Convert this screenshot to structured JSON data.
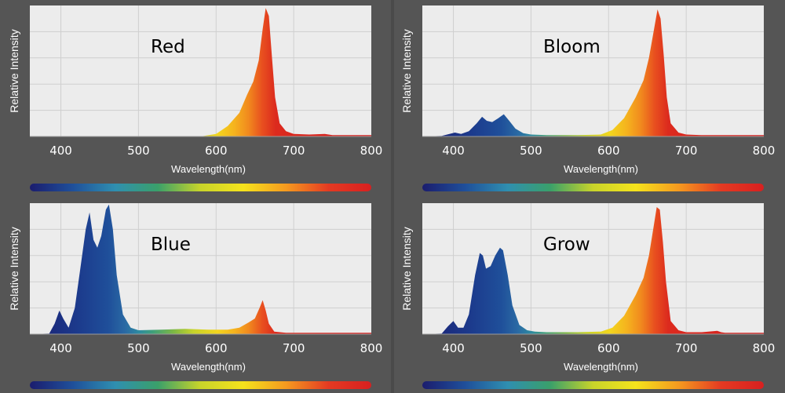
{
  "colors": {
    "background": "#555555",
    "plot_background": "#ececec",
    "grid": "#cfcfcf",
    "axis_text": "#ffffff",
    "spectrum_bar": [
      "#1b1d6e",
      "#1f4f9a",
      "#2f8fb0",
      "#3aa06a",
      "#c8d42a",
      "#f5e31c",
      "#f59a1f",
      "#e43a22",
      "#d82020"
    ]
  },
  "chart_data": [
    {
      "type": "area",
      "title": "Red",
      "xlabel": "Wavelength(nm)",
      "ylabel": "Relative Intensity",
      "xlim": [
        360,
        800
      ],
      "ylim": [
        0,
        1
      ],
      "xticks": [
        400,
        500,
        600,
        700,
        800
      ],
      "grid": true,
      "x": [
        360,
        580,
        600,
        615,
        630,
        640,
        648,
        655,
        660,
        664,
        668,
        672,
        676,
        682,
        690,
        700,
        720,
        740,
        745,
        750,
        800
      ],
      "y": [
        0,
        0,
        0.02,
        0.08,
        0.18,
        0.32,
        0.42,
        0.58,
        0.82,
        0.98,
        0.92,
        0.6,
        0.3,
        0.1,
        0.04,
        0.02,
        0.015,
        0.02,
        0.015,
        0.01,
        0.01
      ]
    },
    {
      "type": "area",
      "title": "Bloom",
      "xlabel": "Wavelength(nm)",
      "ylabel": "Relative Intensity",
      "xlim": [
        360,
        800
      ],
      "ylim": [
        0,
        1
      ],
      "xticks": [
        400,
        500,
        600,
        700,
        800
      ],
      "grid": true,
      "x": [
        360,
        385,
        395,
        402,
        410,
        420,
        430,
        437,
        443,
        450,
        458,
        465,
        472,
        480,
        490,
        500,
        520,
        560,
        590,
        605,
        620,
        635,
        645,
        652,
        658,
        663,
        667,
        671,
        675,
        680,
        690,
        700,
        720,
        800
      ],
      "y": [
        0,
        0.005,
        0.02,
        0.03,
        0.02,
        0.04,
        0.1,
        0.15,
        0.12,
        0.11,
        0.14,
        0.17,
        0.12,
        0.06,
        0.025,
        0.015,
        0.01,
        0.01,
        0.015,
        0.05,
        0.14,
        0.3,
        0.43,
        0.6,
        0.8,
        0.97,
        0.9,
        0.62,
        0.3,
        0.1,
        0.03,
        0.015,
        0.01,
        0.01
      ]
    },
    {
      "type": "area",
      "title": "Blue",
      "xlabel": "Wavelength(nm)",
      "ylabel": "Relative Intensity",
      "xlim": [
        360,
        800
      ],
      "ylim": [
        0,
        1
      ],
      "xticks": [
        400,
        500,
        600,
        700,
        800
      ],
      "grid": true,
      "x": [
        360,
        385,
        392,
        398,
        403,
        410,
        418,
        425,
        432,
        437,
        442,
        447,
        452,
        458,
        462,
        467,
        472,
        480,
        490,
        500,
        530,
        560,
        590,
        615,
        630,
        642,
        650,
        656,
        660,
        664,
        668,
        675,
        690,
        800
      ],
      "y": [
        0,
        0.005,
        0.08,
        0.18,
        0.12,
        0.05,
        0.2,
        0.5,
        0.8,
        0.93,
        0.72,
        0.66,
        0.75,
        0.95,
        0.99,
        0.8,
        0.45,
        0.15,
        0.05,
        0.03,
        0.035,
        0.04,
        0.035,
        0.035,
        0.05,
        0.09,
        0.12,
        0.2,
        0.26,
        0.18,
        0.08,
        0.02,
        0.01,
        0.01
      ]
    },
    {
      "type": "area",
      "title": "Grow",
      "xlabel": "Wavelength(nm)",
      "ylabel": "Relative Intensity",
      "xlim": [
        360,
        800
      ],
      "ylim": [
        0,
        1
      ],
      "xticks": [
        400,
        500,
        600,
        700,
        800
      ],
      "grid": true,
      "x": [
        360,
        385,
        393,
        400,
        406,
        413,
        420,
        428,
        434,
        438,
        442,
        448,
        454,
        460,
        464,
        470,
        476,
        485,
        495,
        505,
        520,
        560,
        590,
        605,
        620,
        635,
        645,
        652,
        658,
        662,
        666,
        670,
        674,
        680,
        690,
        700,
        720,
        740,
        745,
        750,
        800
      ],
      "y": [
        0,
        0.005,
        0.06,
        0.1,
        0.05,
        0.05,
        0.15,
        0.45,
        0.62,
        0.6,
        0.5,
        0.52,
        0.6,
        0.66,
        0.64,
        0.45,
        0.22,
        0.07,
        0.03,
        0.02,
        0.015,
        0.015,
        0.02,
        0.05,
        0.14,
        0.3,
        0.43,
        0.6,
        0.82,
        0.97,
        0.95,
        0.7,
        0.4,
        0.1,
        0.03,
        0.015,
        0.015,
        0.025,
        0.015,
        0.01,
        0.01
      ]
    }
  ]
}
